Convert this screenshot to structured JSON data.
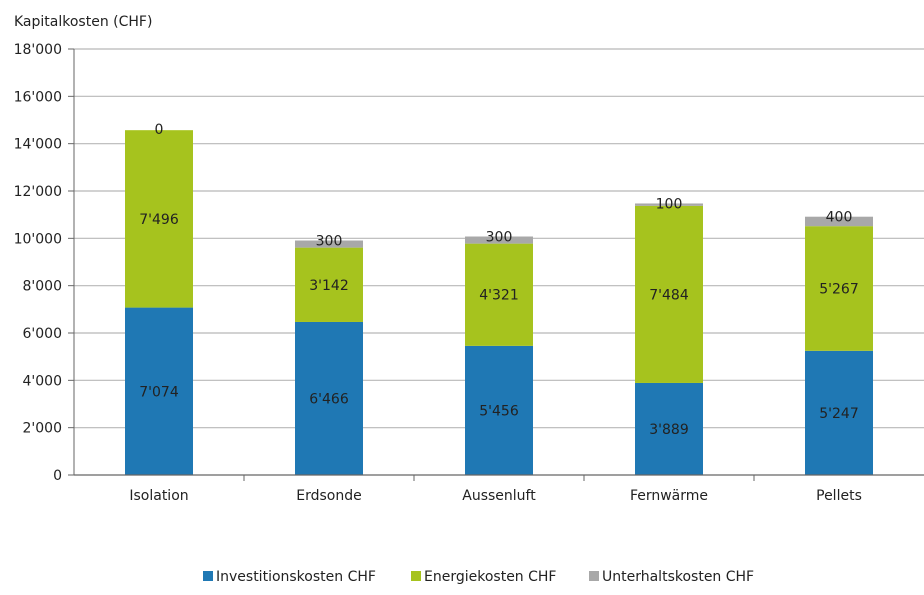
{
  "chart_data": {
    "type": "bar",
    "stacked": true,
    "ylabel": "Kapitalkosten (CHF)",
    "ylim": [
      0,
      18000
    ],
    "yticks": [
      0,
      2000,
      4000,
      6000,
      8000,
      10000,
      12000,
      14000,
      16000,
      18000
    ],
    "ytick_labels": [
      "0",
      "2'000",
      "4'000",
      "6'000",
      "8'000",
      "10'000",
      "12'000",
      "14'000",
      "16'000",
      "18'000"
    ],
    "grid": true,
    "legend_position": "bottom",
    "categories": [
      "Isolation",
      "Erdsonde",
      "Aussenluft",
      "Fernwärme",
      "Pellets"
    ],
    "series": [
      {
        "name": "Investitionskosten CHF",
        "color": "#1f78b4",
        "values": [
          7074,
          6466,
          5456,
          3889,
          5247
        ],
        "labels": [
          "7'074",
          "6'466",
          "5'456",
          "3'889",
          "5'247"
        ]
      },
      {
        "name": "Energiekosten CHF",
        "color": "#a6c31e",
        "values": [
          7496,
          3142,
          4321,
          7484,
          5267
        ],
        "labels": [
          "7'496",
          "3'142",
          "4'321",
          "7'484",
          "5'267"
        ]
      },
      {
        "name": "Unterhaltskosten CHF",
        "color": "#a8a8a8",
        "values": [
          0,
          300,
          300,
          100,
          400
        ],
        "labels": [
          "0",
          "300",
          "300",
          "100",
          "400"
        ]
      }
    ]
  }
}
